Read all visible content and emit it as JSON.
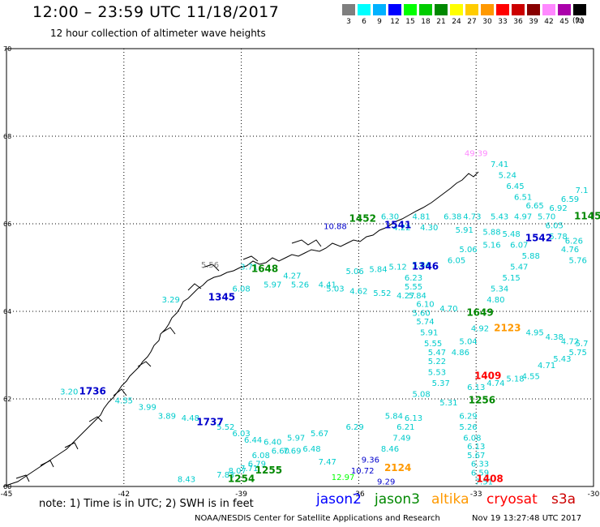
{
  "header": {
    "title": "12:00 – 23:59 UTC 11/18/2017",
    "subtitle": "12 hour collection of altimeter wave heights"
  },
  "colorbar": {
    "unit": "(ft)",
    "swatches": [
      {
        "color": "#7f7f7f",
        "label": "3"
      },
      {
        "color": "#00ffff",
        "label": "6"
      },
      {
        "color": "#00b2ff",
        "label": "9"
      },
      {
        "color": "#0000ff",
        "label": "12"
      },
      {
        "color": "#00ff00",
        "label": "15"
      },
      {
        "color": "#00cc00",
        "label": "18"
      },
      {
        "color": "#008800",
        "label": "21"
      },
      {
        "color": "#ffff00",
        "label": "24"
      },
      {
        "color": "#ffcc00",
        "label": "27"
      },
      {
        "color": "#ff9900",
        "label": "30"
      },
      {
        "color": "#ff0000",
        "label": "33"
      },
      {
        "color": "#cc0000",
        "label": "36"
      },
      {
        "color": "#880000",
        "label": "39"
      },
      {
        "color": "#ff88ff",
        "label": "42"
      },
      {
        "color": "#aa00aa",
        "label": "45"
      },
      {
        "color": "#000000",
        "label": "70"
      }
    ]
  },
  "axes": {
    "lon_labels": [
      "-45",
      "-42",
      "-39",
      "-36",
      "-33",
      "-30"
    ],
    "lat_labels": [
      "70",
      "68",
      "66",
      "64",
      "62",
      "60"
    ]
  },
  "map": {
    "passes": [
      {
        "label": "1452",
        "color": "#008800",
        "lon": -35.9,
        "lat": 66.05
      },
      {
        "label": "1541",
        "color": "#0000cc",
        "lon": -35.0,
        "lat": 65.9
      },
      {
        "label": "1648",
        "color": "#008800",
        "lon": -38.4,
        "lat": 64.9
      },
      {
        "label": "1345",
        "color": "#0000cc",
        "lon": -39.5,
        "lat": 64.25
      },
      {
        "label": "1346",
        "color": "#0000cc",
        "lon": -34.3,
        "lat": 64.95
      },
      {
        "label": "1649",
        "color": "#008800",
        "lon": -32.9,
        "lat": 63.9
      },
      {
        "label": "2123",
        "color": "#ff9900",
        "lon": -32.2,
        "lat": 63.55
      },
      {
        "label": "1542",
        "color": "#0000cc",
        "lon": -31.4,
        "lat": 65.6
      },
      {
        "label": "1145",
        "color": "#008800",
        "lon": -30.15,
        "lat": 66.1
      },
      {
        "label": "1736",
        "color": "#0000cc",
        "lon": -42.8,
        "lat": 62.1
      },
      {
        "label": "1737",
        "color": "#0000cc",
        "lon": -39.8,
        "lat": 61.4
      },
      {
        "label": "1409",
        "color": "#ff0000",
        "lon": -32.7,
        "lat": 62.45
      },
      {
        "label": "1256",
        "color": "#008800",
        "lon": -32.85,
        "lat": 61.9
      },
      {
        "label": "1255",
        "color": "#008800",
        "lon": -38.3,
        "lat": 60.3
      },
      {
        "label": "1254",
        "color": "#008800",
        "lon": -39.0,
        "lat": 60.1
      },
      {
        "label": "2124",
        "color": "#ff9900",
        "lon": -35.0,
        "lat": 60.35
      },
      {
        "label": "1408",
        "color": "#ff0000",
        "lon": -32.65,
        "lat": 60.1
      }
    ],
    "values": [
      {
        "v": "49.39",
        "color": "#ff88ff",
        "lon": -33.0,
        "lat": 67.55
      },
      {
        "v": "7.41",
        "color": "#00cccc",
        "lon": -32.4,
        "lat": 67.3
      },
      {
        "v": "5.24",
        "color": "#00cccc",
        "lon": -32.2,
        "lat": 67.05
      },
      {
        "v": "6.45",
        "color": "#00cccc",
        "lon": -32.0,
        "lat": 66.8
      },
      {
        "v": "6.51",
        "color": "#00cccc",
        "lon": -31.8,
        "lat": 66.55
      },
      {
        "v": "6.65",
        "color": "#00cccc",
        "lon": -31.5,
        "lat": 66.35
      },
      {
        "v": "6.59",
        "color": "#00cccc",
        "lon": -30.6,
        "lat": 66.5
      },
      {
        "v": "7.1",
        "color": "#00cccc",
        "lon": -30.3,
        "lat": 66.7
      },
      {
        "v": "6.92",
        "color": "#00cccc",
        "lon": -30.9,
        "lat": 66.3
      },
      {
        "v": "10.88",
        "color": "#0000cc",
        "lon": -36.6,
        "lat": 65.88
      },
      {
        "v": "6.30",
        "color": "#00cccc",
        "lon": -35.2,
        "lat": 66.1
      },
      {
        "v": "4.81",
        "color": "#00cccc",
        "lon": -34.4,
        "lat": 66.1
      },
      {
        "v": "6.38",
        "color": "#00cccc",
        "lon": -33.6,
        "lat": 66.1
      },
      {
        "v": "4.73",
        "color": "#00cccc",
        "lon": -33.1,
        "lat": 66.1
      },
      {
        "v": "5.43",
        "color": "#00cccc",
        "lon": -32.4,
        "lat": 66.1
      },
      {
        "v": "4.97",
        "color": "#00cccc",
        "lon": -31.8,
        "lat": 66.1
      },
      {
        "v": "5.70",
        "color": "#00cccc",
        "lon": -31.2,
        "lat": 66.1
      },
      {
        "v": "4.22",
        "color": "#00cccc",
        "lon": -34.9,
        "lat": 65.85
      },
      {
        "v": "4.30",
        "color": "#00cccc",
        "lon": -34.2,
        "lat": 65.85
      },
      {
        "v": "5.91",
        "color": "#00cccc",
        "lon": -33.3,
        "lat": 65.8
      },
      {
        "v": "5.88",
        "color": "#00cccc",
        "lon": -32.6,
        "lat": 65.75
      },
      {
        "v": "5.48",
        "color": "#00cccc",
        "lon": -32.1,
        "lat": 65.7
      },
      {
        "v": "6.07",
        "color": "#00cccc",
        "lon": -31.9,
        "lat": 65.45
      },
      {
        "v": "5.16",
        "color": "#00cccc",
        "lon": -32.6,
        "lat": 65.45
      },
      {
        "v": "5.06",
        "color": "#00cccc",
        "lon": -33.2,
        "lat": 65.35
      },
      {
        "v": "5.88",
        "color": "#00cccc",
        "lon": -31.6,
        "lat": 65.2
      },
      {
        "v": "5.47",
        "color": "#00cccc",
        "lon": -31.9,
        "lat": 64.95
      },
      {
        "v": "5.15",
        "color": "#00cccc",
        "lon": -32.1,
        "lat": 64.7
      },
      {
        "v": "5.34",
        "color": "#00cccc",
        "lon": -32.4,
        "lat": 64.45
      },
      {
        "v": "4.80",
        "color": "#00cccc",
        "lon": -32.5,
        "lat": 64.2
      },
      {
        "v": "6.05",
        "color": "#00cccc",
        "lon": -31.0,
        "lat": 65.9
      },
      {
        "v": "5.78",
        "color": "#00cccc",
        "lon": -30.9,
        "lat": 65.65
      },
      {
        "v": "6.26",
        "color": "#00cccc",
        "lon": -30.5,
        "lat": 65.55
      },
      {
        "v": "4.76",
        "color": "#00cccc",
        "lon": -30.6,
        "lat": 65.35
      },
      {
        "v": "5.76",
        "color": "#00cccc",
        "lon": -30.4,
        "lat": 65.1
      },
      {
        "v": "5.56",
        "color": "#7f7f7f",
        "lon": -39.8,
        "lat": 65.0
      },
      {
        "v": "3.71",
        "color": "#00cccc",
        "lon": -38.8,
        "lat": 64.95
      },
      {
        "v": "4.27",
        "color": "#00cccc",
        "lon": -37.7,
        "lat": 64.75
      },
      {
        "v": "5.97",
        "color": "#00cccc",
        "lon": -38.2,
        "lat": 64.55
      },
      {
        "v": "5.26",
        "color": "#00cccc",
        "lon": -37.5,
        "lat": 64.55
      },
      {
        "v": "4.41",
        "color": "#00cccc",
        "lon": -36.8,
        "lat": 64.55
      },
      {
        "v": "5.06",
        "color": "#00cccc",
        "lon": -36.1,
        "lat": 64.85
      },
      {
        "v": "5.84",
        "color": "#00cccc",
        "lon": -35.5,
        "lat": 64.9
      },
      {
        "v": "5.12",
        "color": "#00cccc",
        "lon": -35.0,
        "lat": 64.95
      },
      {
        "v": "5.84",
        "color": "#00cccc",
        "lon": -34.4,
        "lat": 65.0
      },
      {
        "v": "6.05",
        "color": "#00cccc",
        "lon": -33.5,
        "lat": 65.1
      },
      {
        "v": "6.08",
        "color": "#00cccc",
        "lon": -39.0,
        "lat": 64.45
      },
      {
        "v": "3.29",
        "color": "#00cccc",
        "lon": -40.8,
        "lat": 64.2
      },
      {
        "v": "5.03",
        "color": "#00cccc",
        "lon": -36.6,
        "lat": 64.45
      },
      {
        "v": "4.62",
        "color": "#00cccc",
        "lon": -36.0,
        "lat": 64.4
      },
      {
        "v": "5.52",
        "color": "#00cccc",
        "lon": -35.4,
        "lat": 64.35
      },
      {
        "v": "4.27",
        "color": "#00cccc",
        "lon": -34.8,
        "lat": 64.3
      },
      {
        "v": "6.23",
        "color": "#00cccc",
        "lon": -34.6,
        "lat": 64.7
      },
      {
        "v": "5.55",
        "color": "#00cccc",
        "lon": -34.6,
        "lat": 64.5
      },
      {
        "v": "5.84",
        "color": "#00cccc",
        "lon": -34.5,
        "lat": 64.3
      },
      {
        "v": "6.10",
        "color": "#00cccc",
        "lon": -34.3,
        "lat": 64.1
      },
      {
        "v": "4.70",
        "color": "#00cccc",
        "lon": -33.7,
        "lat": 64.0
      },
      {
        "v": "5.60",
        "color": "#00cccc",
        "lon": -34.4,
        "lat": 63.9
      },
      {
        "v": "5.74",
        "color": "#00cccc",
        "lon": -34.3,
        "lat": 63.7
      },
      {
        "v": "5.91",
        "color": "#00cccc",
        "lon": -34.2,
        "lat": 63.45
      },
      {
        "v": "5.55",
        "color": "#00cccc",
        "lon": -34.1,
        "lat": 63.2
      },
      {
        "v": "5.47",
        "color": "#00cccc",
        "lon": -34.0,
        "lat": 63.0
      },
      {
        "v": "4.86",
        "color": "#00cccc",
        "lon": -33.4,
        "lat": 63.0
      },
      {
        "v": "5.04",
        "color": "#00cccc",
        "lon": -33.2,
        "lat": 63.25
      },
      {
        "v": "4.92",
        "color": "#00cccc",
        "lon": -32.9,
        "lat": 63.55
      },
      {
        "v": "4.95",
        "color": "#00cccc",
        "lon": -31.5,
        "lat": 63.45
      },
      {
        "v": "4.38",
        "color": "#00cccc",
        "lon": -31.0,
        "lat": 63.35
      },
      {
        "v": "4.72",
        "color": "#00cccc",
        "lon": -30.6,
        "lat": 63.25
      },
      {
        "v": "5.7",
        "color": "#00cccc",
        "lon": -30.3,
        "lat": 63.2
      },
      {
        "v": "5.22",
        "color": "#00cccc",
        "lon": -34.0,
        "lat": 62.8
      },
      {
        "v": "5.53",
        "color": "#00cccc",
        "lon": -34.0,
        "lat": 62.55
      },
      {
        "v": "5.37",
        "color": "#00cccc",
        "lon": -33.9,
        "lat": 62.3
      },
      {
        "v": "6.13",
        "color": "#00cccc",
        "lon": -33.0,
        "lat": 62.2
      },
      {
        "v": "4.74",
        "color": "#00cccc",
        "lon": -32.5,
        "lat": 62.3
      },
      {
        "v": "5.18",
        "color": "#00cccc",
        "lon": -32.0,
        "lat": 62.4
      },
      {
        "v": "4.55",
        "color": "#00cccc",
        "lon": -31.6,
        "lat": 62.45
      },
      {
        "v": "4.71",
        "color": "#00cccc",
        "lon": -31.2,
        "lat": 62.7
      },
      {
        "v": "5.43",
        "color": "#00cccc",
        "lon": -30.8,
        "lat": 62.85
      },
      {
        "v": "5.75",
        "color": "#00cccc",
        "lon": -30.4,
        "lat": 63.0
      },
      {
        "v": "5.08",
        "color": "#00cccc",
        "lon": -34.4,
        "lat": 62.05
      },
      {
        "v": "5.31",
        "color": "#00cccc",
        "lon": -33.7,
        "lat": 61.85
      },
      {
        "v": "6.29",
        "color": "#00cccc",
        "lon": -33.2,
        "lat": 61.55
      },
      {
        "v": "5.26",
        "color": "#00cccc",
        "lon": -33.2,
        "lat": 61.3
      },
      {
        "v": "6.08",
        "color": "#00cccc",
        "lon": -33.1,
        "lat": 61.05
      },
      {
        "v": "6.13",
        "color": "#00cccc",
        "lon": -33.0,
        "lat": 60.85
      },
      {
        "v": "5.67",
        "color": "#00cccc",
        "lon": -33.0,
        "lat": 60.65
      },
      {
        "v": "6.33",
        "color": "#00cccc",
        "lon": -32.9,
        "lat": 60.45
      },
      {
        "v": "6.59",
        "color": "#00cccc",
        "lon": -32.9,
        "lat": 60.25
      },
      {
        "v": "7.51",
        "color": "#00cccc",
        "lon": -32.8,
        "lat": 60.05
      },
      {
        "v": "5.84",
        "color": "#00cccc",
        "lon": -35.1,
        "lat": 61.55
      },
      {
        "v": "6.13",
        "color": "#00cccc",
        "lon": -34.6,
        "lat": 61.5
      },
      {
        "v": "6.21",
        "color": "#00cccc",
        "lon": -34.8,
        "lat": 61.3
      },
      {
        "v": "7.49",
        "color": "#00cccc",
        "lon": -34.9,
        "lat": 61.05
      },
      {
        "v": "8.46",
        "color": "#00cccc",
        "lon": -35.2,
        "lat": 60.8
      },
      {
        "v": "9.36",
        "color": "#0000cc",
        "lon": -35.7,
        "lat": 60.55
      },
      {
        "v": "10.72",
        "color": "#0000cc",
        "lon": -35.9,
        "lat": 60.3
      },
      {
        "v": "9.29",
        "color": "#0000cc",
        "lon": -35.3,
        "lat": 60.05
      },
      {
        "v": "12.97",
        "color": "#00ff00",
        "lon": -36.4,
        "lat": 60.15
      },
      {
        "v": "6.29",
        "color": "#00cccc",
        "lon": -36.1,
        "lat": 61.3
      },
      {
        "v": "5.67",
        "color": "#00cccc",
        "lon": -37.0,
        "lat": 61.15
      },
      {
        "v": "5.97",
        "color": "#00cccc",
        "lon": -37.6,
        "lat": 61.05
      },
      {
        "v": "6.48",
        "color": "#00cccc",
        "lon": -37.2,
        "lat": 60.8
      },
      {
        "v": "7.47",
        "color": "#00cccc",
        "lon": -36.8,
        "lat": 60.5
      },
      {
        "v": "7.69",
        "color": "#00cccc",
        "lon": -37.7,
        "lat": 60.75
      },
      {
        "v": "6.44",
        "color": "#00cccc",
        "lon": -38.7,
        "lat": 61.0
      },
      {
        "v": "6.40",
        "color": "#00cccc",
        "lon": -38.2,
        "lat": 60.95
      },
      {
        "v": "6.60",
        "color": "#00cccc",
        "lon": -38.0,
        "lat": 60.75
      },
      {
        "v": "6.08",
        "color": "#00cccc",
        "lon": -38.5,
        "lat": 60.65
      },
      {
        "v": "6.79",
        "color": "#00cccc",
        "lon": -38.6,
        "lat": 60.45
      },
      {
        "v": "7.71",
        "color": "#00cccc",
        "lon": -38.8,
        "lat": 60.35
      },
      {
        "v": "8.07",
        "color": "#00cccc",
        "lon": -39.1,
        "lat": 60.3
      },
      {
        "v": "7.83",
        "color": "#00cccc",
        "lon": -39.4,
        "lat": 60.2
      },
      {
        "v": "8.43",
        "color": "#00cccc",
        "lon": -40.4,
        "lat": 60.1
      },
      {
        "v": "6.03",
        "color": "#00cccc",
        "lon": -39.0,
        "lat": 61.15
      },
      {
        "v": "5.52",
        "color": "#00cccc",
        "lon": -39.4,
        "lat": 61.3
      },
      {
        "v": "4.48",
        "color": "#00cccc",
        "lon": -40.3,
        "lat": 61.5
      },
      {
        "v": "3.89",
        "color": "#00cccc",
        "lon": -40.9,
        "lat": 61.55
      },
      {
        "v": "3.99",
        "color": "#00cccc",
        "lon": -41.4,
        "lat": 61.75
      },
      {
        "v": "4.55",
        "color": "#00cccc",
        "lon": -42.0,
        "lat": 61.9
      },
      {
        "v": "3.20",
        "color": "#00cccc",
        "lon": -43.4,
        "lat": 62.1
      }
    ]
  },
  "footer": {
    "note": "note:  1) Time is in UTC;  2) SWH is in feet",
    "satellites": [
      {
        "name": "jason2",
        "color": "#0000ff"
      },
      {
        "name": "jason3",
        "color": "#008800"
      },
      {
        "name": "altika",
        "color": "#ff9900"
      },
      {
        "name": "cryosat",
        "color": "#ff0000"
      },
      {
        "name": "s3a",
        "color": "#cc0000"
      }
    ],
    "credit": "NOAA/NESDIS Center for Satellite Applications and Research",
    "timestamp": "Nov 19 13:27:48 UTC 2017"
  }
}
